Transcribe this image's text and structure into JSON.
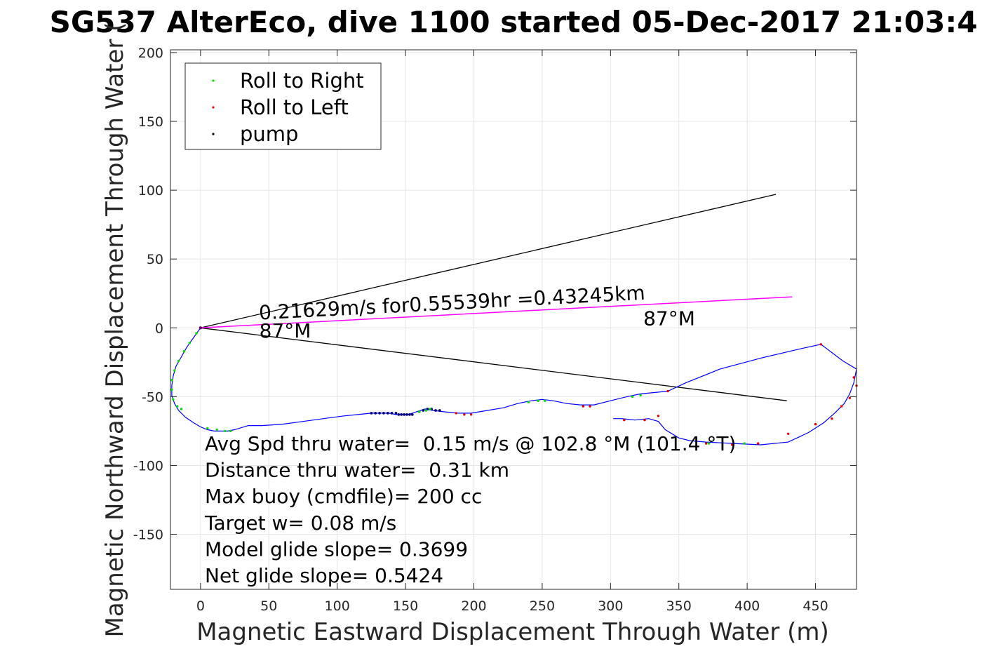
{
  "chart_data": {
    "type": "line",
    "title": "SG537 AlterEco, dive 1100 started 05-Dec-2017 21:03:4",
    "xlabel": "Magnetic Eastward Displacement Through Water (m)",
    "ylabel": "Magnetic Northward Displacement Through Water (",
    "xlim": [
      -22,
      480
    ],
    "ylim": [
      -190,
      202
    ],
    "xticks": [
      0,
      50,
      100,
      150,
      200,
      250,
      300,
      350,
      400,
      450
    ],
    "yticks": [
      200,
      150,
      100,
      50,
      0,
      -50,
      -100,
      -150
    ],
    "grid": true,
    "legend": {
      "placement": "top-left",
      "entries": [
        {
          "label": "Roll to Right",
          "color": "#00dd00"
        },
        {
          "label": "Roll to Left",
          "color": "#ee0000"
        },
        {
          "label": "pump",
          "color": "#000000"
        }
      ]
    },
    "colors": {
      "track": "#0000ff",
      "current": "#ff00ff",
      "cone": "#000000",
      "grid": "#e6e6e6"
    },
    "track": {
      "x": [
        0,
        -5,
        -10,
        -14,
        -18,
        -20,
        -21,
        -21,
        -19,
        -16,
        -11,
        -5,
        0,
        5,
        10,
        15,
        20,
        25,
        35,
        45,
        60,
        75,
        90,
        105,
        115,
        125,
        132,
        138,
        143,
        148,
        152,
        158,
        164,
        170,
        178,
        188,
        198,
        210,
        222,
        232,
        242,
        250,
        258,
        268,
        278,
        288,
        300,
        312,
        322,
        332,
        342,
        355,
        380,
        410,
        440,
        454,
        470,
        480,
        478,
        475,
        471,
        464,
        456,
        445,
        430,
        410,
        390,
        370,
        358,
        350,
        345,
        340,
        335,
        328,
        318,
        308,
        302
      ],
      "y": [
        0,
        -7,
        -14,
        -21,
        -28,
        -35,
        -42,
        -49,
        -55,
        -60,
        -65,
        -69,
        -72,
        -74,
        -75,
        -75,
        -75,
        -74,
        -71,
        -71,
        -70,
        -68,
        -66,
        -64,
        -63,
        -62,
        -62,
        -62,
        -63,
        -63,
        -63,
        -61,
        -59,
        -60,
        -61,
        -62,
        -62,
        -60,
        -58,
        -55,
        -53,
        -52,
        -53,
        -55,
        -56,
        -56,
        -53,
        -50,
        -48,
        -47,
        -46,
        -40,
        -30,
        -22,
        -15,
        -12,
        -24,
        -30,
        -40,
        -48,
        -55,
        -62,
        -69,
        -76,
        -83,
        -85,
        -84,
        -83,
        -82,
        -80,
        -77,
        -74,
        -68,
        -66,
        -67,
        -66,
        -66
      ]
    },
    "roll_right": {
      "x": [
        -3,
        -8,
        -12,
        -16,
        -19,
        -21,
        -21,
        -20,
        -17,
        -14,
        5,
        12,
        18,
        22,
        160,
        165,
        168,
        240,
        247,
        252,
        316,
        322,
        372,
        398
      ],
      "y": [
        -4,
        -11,
        -17,
        -24,
        -31,
        -38,
        -45,
        -52,
        -57,
        -59,
        -73,
        -74,
        -75,
        -75,
        -61,
        -60,
        -59,
        -54,
        -53,
        -53,
        -50,
        -49,
        -84,
        -84
      ]
    },
    "roll_left": {
      "x": [
        0,
        187,
        193,
        198,
        280,
        285,
        310,
        325,
        335,
        342,
        454,
        478,
        480,
        475,
        469,
        462,
        450,
        430,
        408,
        389,
        370
      ],
      "y": [
        0,
        -62,
        -63,
        -63,
        -57,
        -57,
        -67,
        -67,
        -64,
        -46,
        -12,
        -36,
        -42,
        -51,
        -57,
        -66,
        -70,
        -77,
        -84,
        -85,
        -84
      ]
    },
    "pump": {
      "x": [
        125,
        128,
        131,
        134,
        137,
        140,
        143,
        145,
        147,
        149,
        151,
        153,
        155,
        160,
        163,
        166,
        169,
        172,
        175
      ],
      "y": [
        -62,
        -62,
        -62,
        -62,
        -62,
        -62,
        -62,
        -63,
        -63,
        -63,
        -63,
        -63,
        -63,
        -61,
        -60,
        -59,
        -59,
        -60,
        -60
      ]
    },
    "current_vector": {
      "x": [
        0,
        433
      ],
      "y": [
        0,
        22.5
      ]
    },
    "cone_upper": {
      "x": [
        0,
        421
      ],
      "y": [
        0,
        97
      ]
    },
    "cone_lower": {
      "x": [
        0,
        429
      ],
      "y": [
        0,
        -53
      ]
    },
    "annotations": [
      {
        "text": "0.21629m/s for0.55539hr =0.43245km",
        "x": 43,
        "y": 6,
        "angle": 3
      },
      {
        "text": "87°M",
        "x": 43,
        "y": -7,
        "angle": 0
      },
      {
        "text": "87°M",
        "x": 324,
        "y": 2,
        "angle": 0
      }
    ],
    "stats": [
      "Avg Spd thru water=  0.15 m/s @ 102.8 °M (101.4 °T)",
      "Distance thru water=  0.31 km",
      "Max buoy (cmdfile)= 200 cc",
      "Target w= 0.08 m/s",
      "Model glide slope= 0.3699",
      "Net glide slope= 0.5424"
    ]
  }
}
